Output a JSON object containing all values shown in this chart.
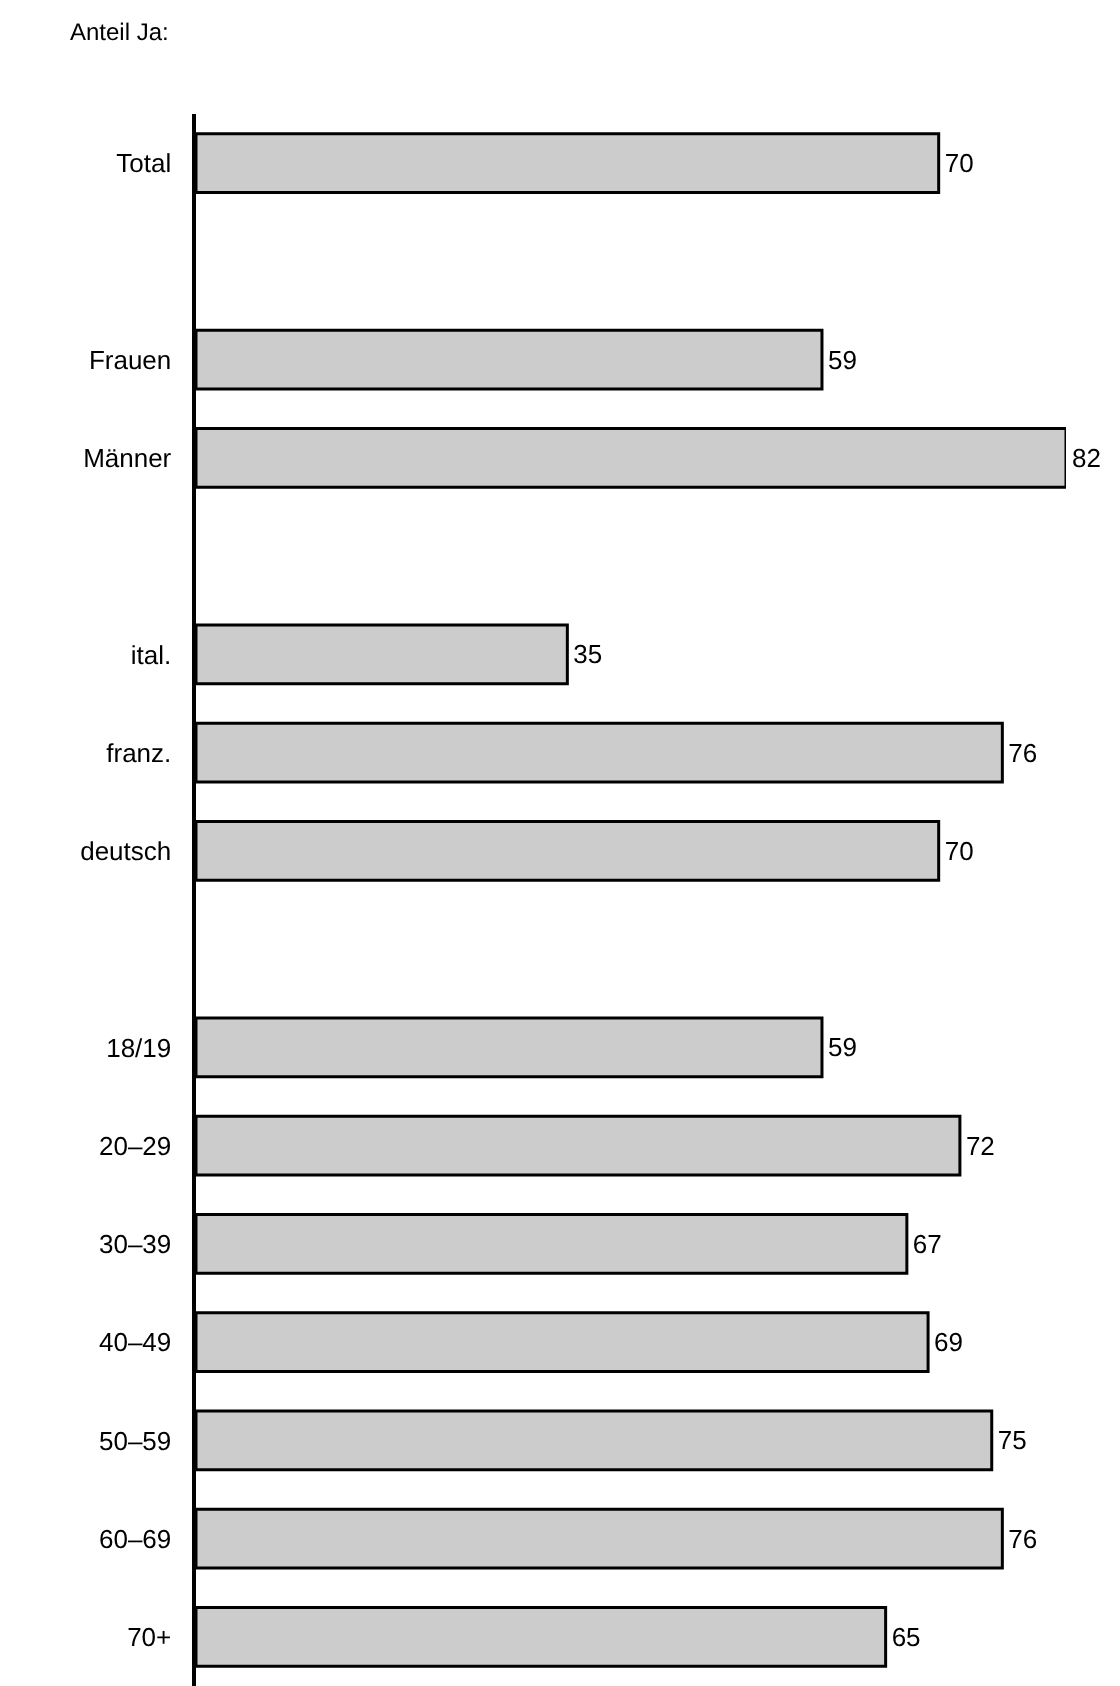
{
  "chart_data": {
    "type": "bar",
    "orientation": "horizontal",
    "title": "Anteil Ja:",
    "categories": [
      "Total",
      null,
      "Frauen",
      "Männer",
      null,
      "ital.",
      "franz.",
      "deutsch",
      null,
      "18/19",
      "20–29",
      "30–39",
      "40–49",
      "50–59",
      "60–69",
      "70+"
    ],
    "values": [
      70,
      null,
      59,
      82,
      null,
      35,
      76,
      70,
      null,
      59,
      72,
      67,
      69,
      75,
      76,
      65
    ],
    "color": "#cccccc",
    "data_labels": true
  }
}
